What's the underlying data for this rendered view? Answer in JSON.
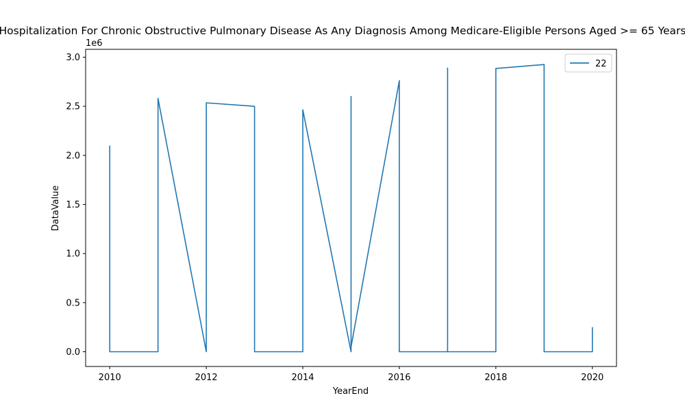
{
  "chart_data": {
    "type": "line",
    "title": "Hospitalization For Chronic Obstructive Pulmonary Disease As Any Diagnosis Among Medicare-Eligible Persons Aged >= 65 Years",
    "xlabel": "YearEnd",
    "ylabel": "DataValue",
    "y_offset_label": "1e6",
    "xlim": [
      2009.5,
      2020.5
    ],
    "ylim": [
      -150000,
      3080000
    ],
    "xticks": [
      2010,
      2012,
      2014,
      2016,
      2018,
      2020
    ],
    "xtick_labels": [
      "2010",
      "2012",
      "2014",
      "2016",
      "2018",
      "2020"
    ],
    "yticks": [
      0,
      500000,
      1000000,
      1500000,
      2000000,
      2500000,
      3000000
    ],
    "ytick_labels": [
      "0.0",
      "0.5",
      "1.0",
      "1.5",
      "2.0",
      "2.5",
      "3.0"
    ],
    "grid": false,
    "legend_position": "top-right",
    "series": [
      {
        "name": "22",
        "color": "#1f77b4",
        "x": [
          2010,
          2010,
          2011,
          2011,
          2012,
          2012,
          2013,
          2013,
          2014,
          2014,
          2015,
          2015,
          2015,
          2015,
          2016,
          2016,
          2017,
          2017,
          2017,
          2018,
          2018,
          2019,
          2019,
          2020,
          2020
        ],
        "y": [
          2100000,
          0,
          0,
          2580000,
          0,
          2535000,
          2500000,
          0,
          0,
          2465000,
          0,
          2600000,
          0,
          50000,
          2760000,
          0,
          0,
          2890000,
          0,
          0,
          2885000,
          2925000,
          0,
          0,
          250000
        ]
      }
    ]
  }
}
